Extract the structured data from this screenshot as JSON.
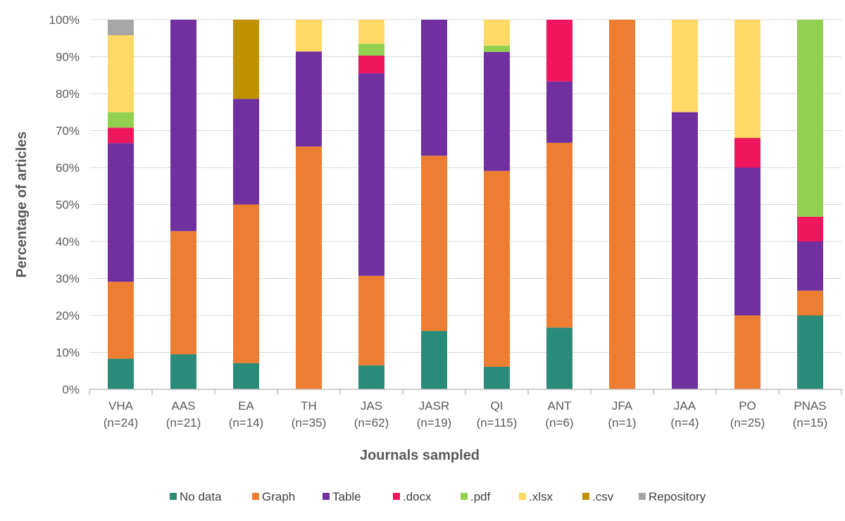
{
  "chart_data": {
    "type": "bar",
    "stacked": true,
    "ylabel": "Percentage of articles",
    "xlabel": "Journals sampled",
    "ylim": [
      0,
      100
    ],
    "yticks": [
      "0%",
      "10%",
      "20%",
      "30%",
      "40%",
      "50%",
      "60%",
      "70%",
      "80%",
      "90%",
      "100%"
    ],
    "categories": [
      {
        "name": "VHA",
        "n": "(n=24)"
      },
      {
        "name": "AAS",
        "n": "(n=21)"
      },
      {
        "name": "EA",
        "n": "(n=14)"
      },
      {
        "name": "TH",
        "n": "(n=35)"
      },
      {
        "name": "JAS",
        "n": "(n=62)"
      },
      {
        "name": "JASR",
        "n": "(n=19)"
      },
      {
        "name": "QI",
        "n": "(n=115)"
      },
      {
        "name": "ANT",
        "n": "(n=6)"
      },
      {
        "name": "JFA",
        "n": "(n=1)"
      },
      {
        "name": "JAA",
        "n": "(n=4)"
      },
      {
        "name": "PO",
        "n": "(n=25)"
      },
      {
        "name": "PNAS",
        "n": "(n=15)"
      }
    ],
    "series": [
      {
        "name": "No data",
        "color": "#2a8b78",
        "values": [
          8.3,
          9.5,
          7.1,
          0,
          6.5,
          15.8,
          6.1,
          16.7,
          0,
          0,
          0,
          20.0
        ]
      },
      {
        "name": "Graph",
        "color": "#ed7d31",
        "values": [
          20.8,
          33.3,
          42.9,
          65.7,
          24.2,
          47.4,
          53.0,
          50.0,
          100,
          0,
          20.0,
          6.7
        ]
      },
      {
        "name": "Table",
        "color": "#7030a0",
        "values": [
          37.5,
          57.2,
          28.6,
          25.7,
          54.8,
          36.8,
          32.2,
          16.6,
          0,
          75.0,
          40.0,
          13.3
        ]
      },
      {
        "name": ".docx",
        "color": "#f0165e",
        "values": [
          4.2,
          0,
          0,
          0,
          4.8,
          0,
          0,
          16.7,
          0,
          0,
          8.0,
          6.7
        ]
      },
      {
        "name": ".pdf",
        "color": "#92d050",
        "values": [
          4.2,
          0,
          0,
          0,
          3.2,
          0,
          1.7,
          0,
          0,
          0,
          0,
          53.3
        ]
      },
      {
        "name": ".xlsx",
        "color": "#ffd966",
        "values": [
          20.8,
          0,
          0,
          8.6,
          6.5,
          0,
          7.0,
          0,
          0,
          25.0,
          32.0,
          0
        ]
      },
      {
        "name": ".csv",
        "color": "#bf9000",
        "values": [
          0,
          0,
          21.4,
          0,
          0,
          0,
          0,
          0,
          0,
          0,
          0,
          0
        ]
      },
      {
        "name": "Repository",
        "color": "#a6a6a6",
        "values": [
          4.2,
          0,
          0,
          0,
          0,
          0,
          0,
          0,
          0,
          0,
          0,
          0
        ]
      }
    ],
    "legend_position": "bottom"
  }
}
